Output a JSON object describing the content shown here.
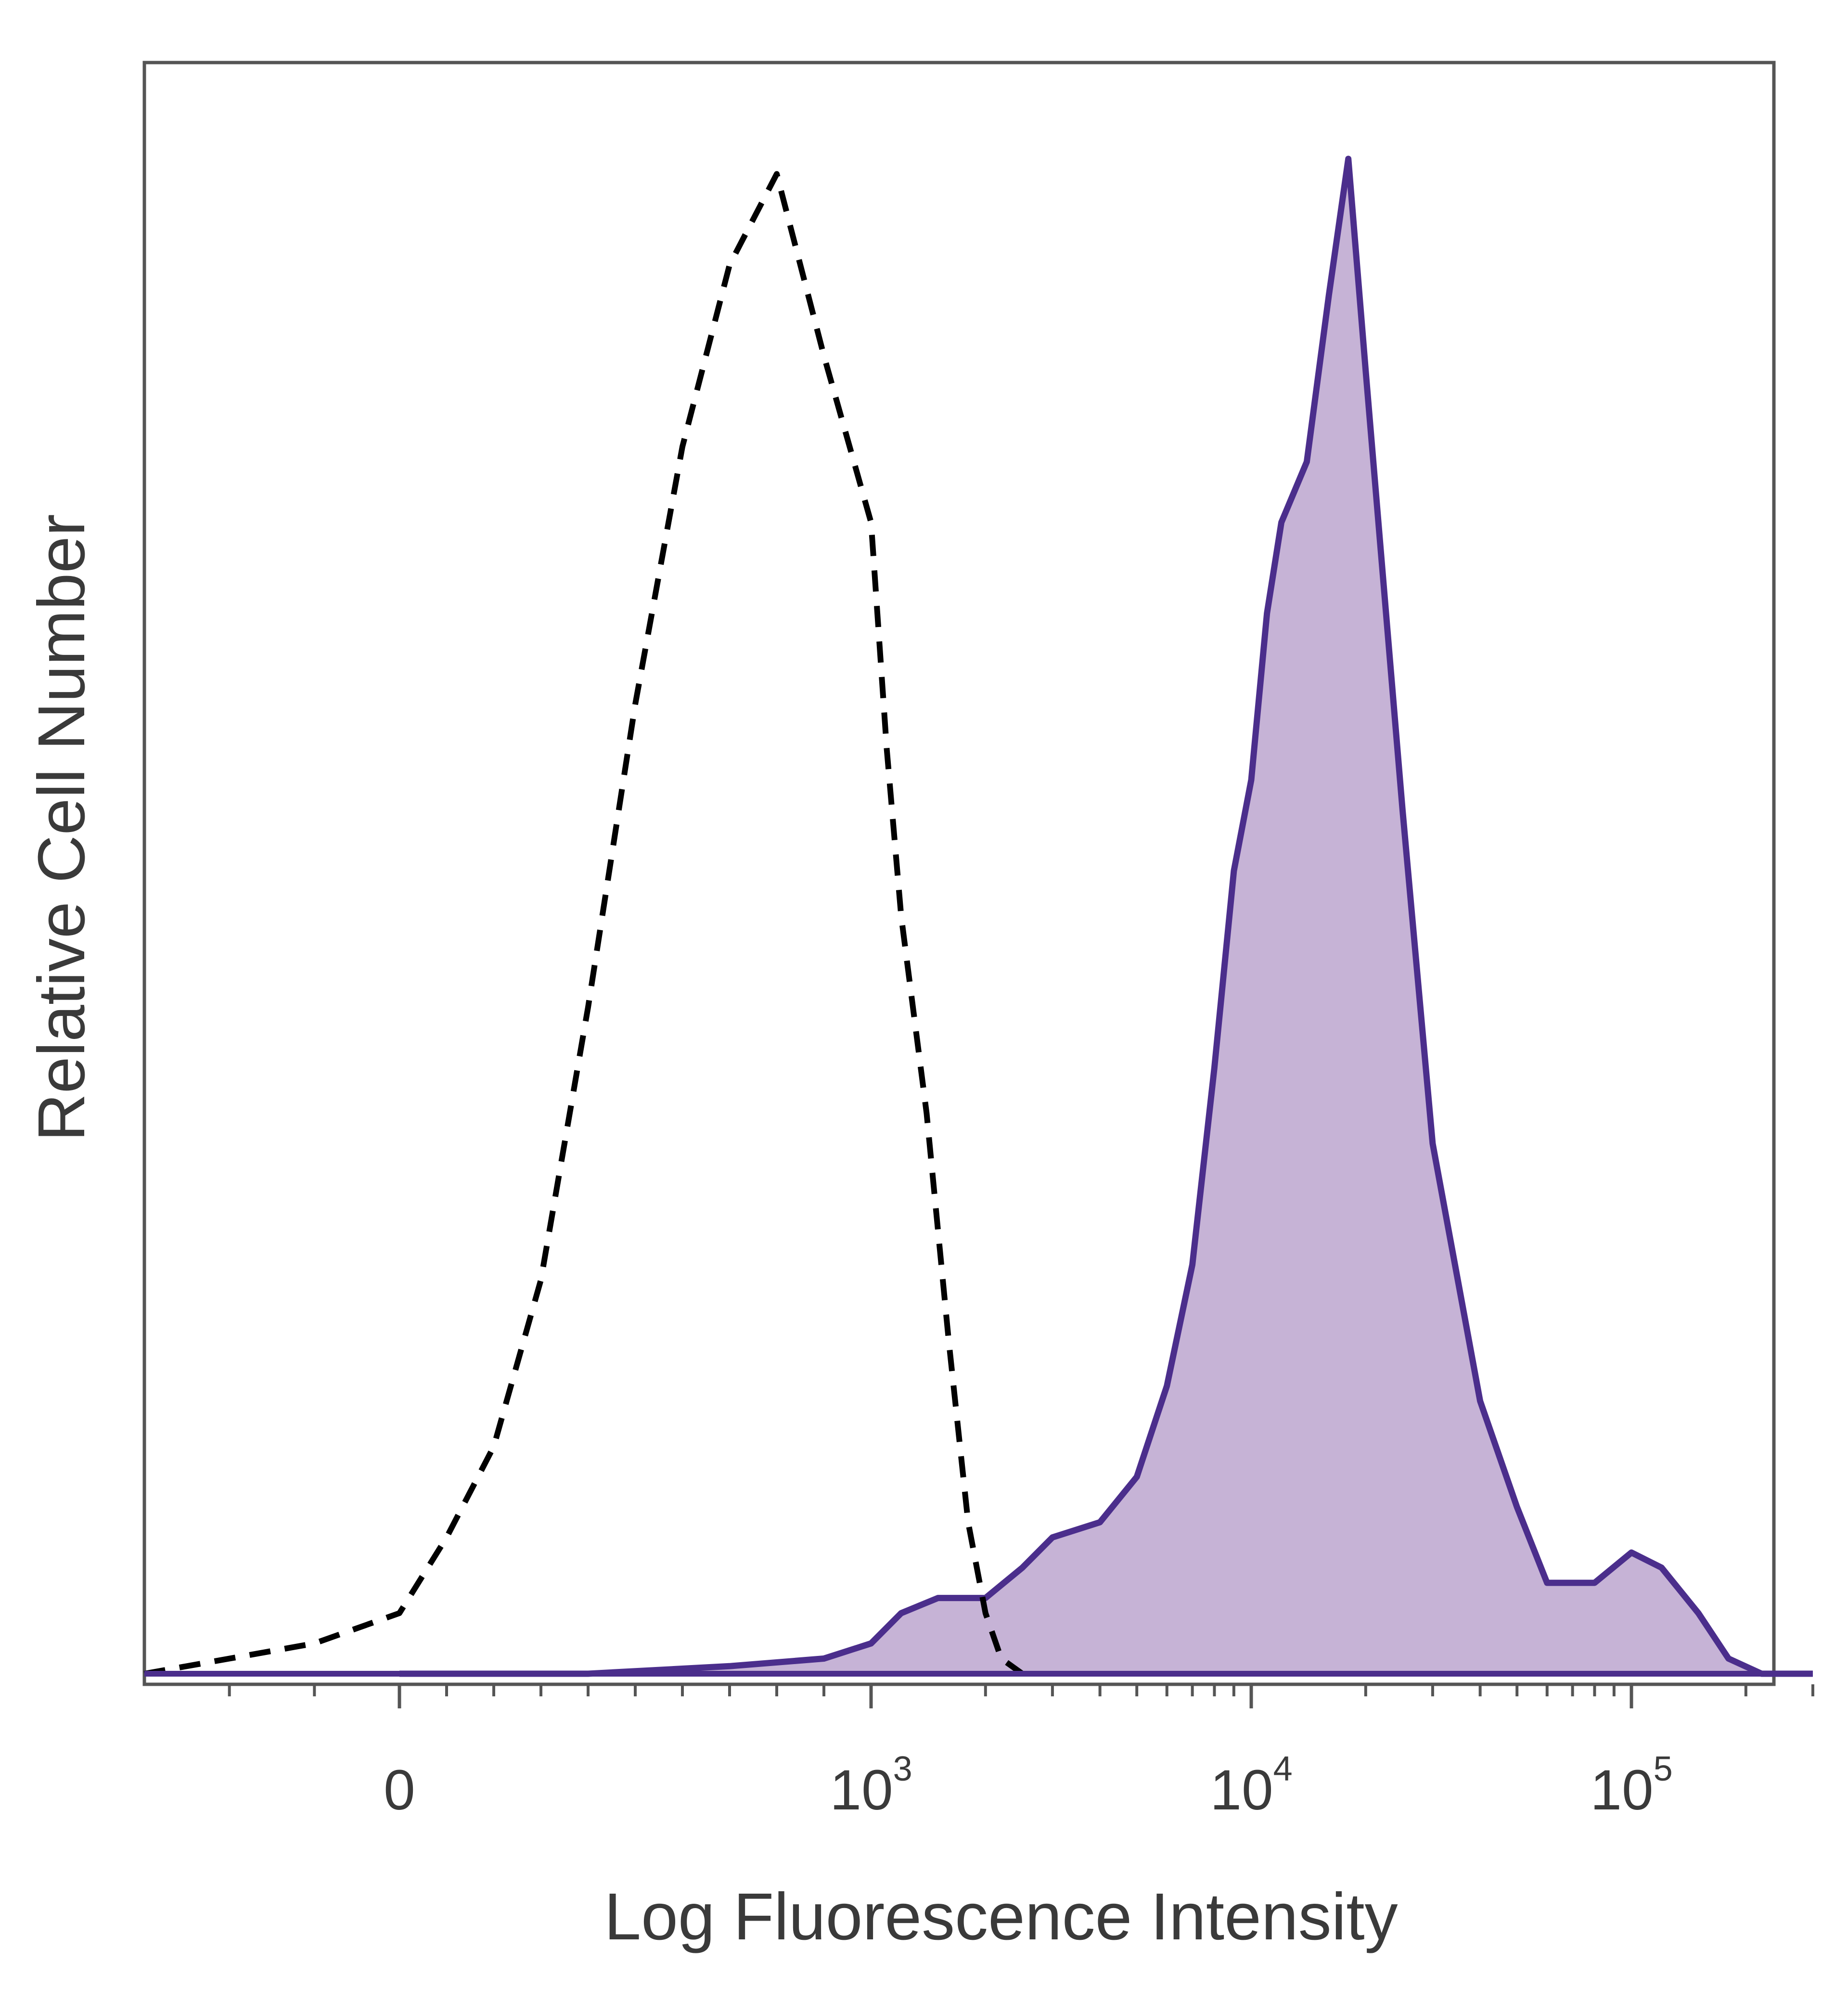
{
  "chart_data": {
    "type": "area",
    "xlabel": "Log Fluorescence Intensity",
    "ylabel": "Relative Cell Number",
    "x_scale": "biexponential",
    "xlim": [
      -300,
      300000
    ],
    "ylim": [
      0,
      100
    ],
    "x_ticks": [
      {
        "value": 0,
        "base": "0",
        "exp": ""
      },
      {
        "value": 1000,
        "base": "10",
        "exp": "3"
      },
      {
        "value": 10000,
        "base": "10",
        "exp": "4"
      },
      {
        "value": 100000,
        "base": "10",
        "exp": "5"
      }
    ],
    "grid": false,
    "legend": "none",
    "series": [
      {
        "style": "dashed",
        "color": "#000000",
        "fill": "none",
        "x": [
          -300,
          -200,
          -100,
          0,
          100,
          200,
          300,
          400,
          500,
          600,
          700,
          800,
          900,
          1000,
          1100,
          1200,
          1400,
          1600,
          1800,
          2000,
          2200,
          2500
        ],
        "y": [
          0,
          1,
          2,
          4,
          9,
          15,
          26,
          44,
          64,
          81,
          93,
          99,
          87,
          76,
          61,
          50,
          37,
          22,
          10,
          4,
          1,
          0
        ]
      },
      {
        "style": "solid",
        "color": "#4b2e8c",
        "fill": "#c6b3d6",
        "x": [
          0,
          400,
          700,
          900,
          1000,
          1200,
          1500,
          2000,
          2500,
          3000,
          4000,
          5000,
          6000,
          7000,
          8000,
          9000,
          10000,
          11000,
          12000,
          14000,
          16000,
          18000,
          20000,
          25000,
          30000,
          40000,
          50000,
          60000,
          80000,
          100000,
          120000,
          150000,
          180000,
          220000,
          300000
        ],
        "y": [
          0,
          0,
          0.5,
          1,
          2,
          4,
          5,
          5,
          7,
          9,
          10,
          13,
          19,
          27,
          40,
          53,
          59,
          70,
          76,
          80,
          91,
          100,
          86,
          57,
          35,
          18,
          11,
          6,
          6,
          8,
          7,
          4,
          1,
          0,
          0
        ]
      }
    ]
  }
}
